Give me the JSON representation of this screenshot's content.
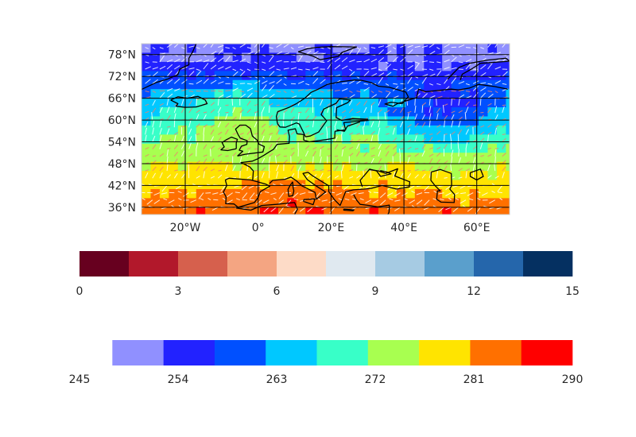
{
  "chart_data": {
    "type": "heatmap",
    "map": {
      "lon_range": [
        -32,
        69
      ],
      "lat_range": [
        34,
        81
      ],
      "grid_lons": [
        -20,
        0,
        20,
        40,
        60
      ],
      "grid_lats": [
        36,
        42,
        48,
        54,
        60,
        66,
        72,
        78
      ],
      "x_tick_labels": [
        "20°W",
        "0°",
        "20°E",
        "40°E",
        "60°E"
      ],
      "y_tick_labels": [
        "36°N",
        "42°N",
        "48°N",
        "54°N",
        "60°N",
        "66°N",
        "72°N",
        "78°N"
      ],
      "field_colors": [
        "#9090ff",
        "#2222ff",
        "#0050ff",
        "#00c8ff",
        "#38ffc8",
        "#a8ff50",
        "#ffe400",
        "#ff7000",
        "#ff0000"
      ],
      "vector_colors": [
        "#ffffff",
        "#f08070"
      ],
      "coastline_color": "#000000"
    },
    "colorbars": [
      {
        "name": "wind-speed-colorbar",
        "colors": [
          "#67001f",
          "#b2182b",
          "#d6604d",
          "#f4a582",
          "#fddbc7",
          "#e0e9f0",
          "#a6cbe3",
          "#5a9fcc",
          "#2566ab",
          "#053061"
        ],
        "ticks": [
          0,
          3,
          6,
          9,
          12,
          15
        ],
        "range": [
          0,
          15
        ]
      },
      {
        "name": "temperature-colorbar",
        "colors": [
          "#9090ff",
          "#2222ff",
          "#0050ff",
          "#00c8ff",
          "#38ffc8",
          "#a8ff50",
          "#ffe400",
          "#ff7000",
          "#ff0000"
        ],
        "ticks": [
          245,
          254,
          263,
          272,
          281,
          290
        ],
        "range": [
          245,
          290
        ],
        "first_color_start": 248
      }
    ]
  }
}
